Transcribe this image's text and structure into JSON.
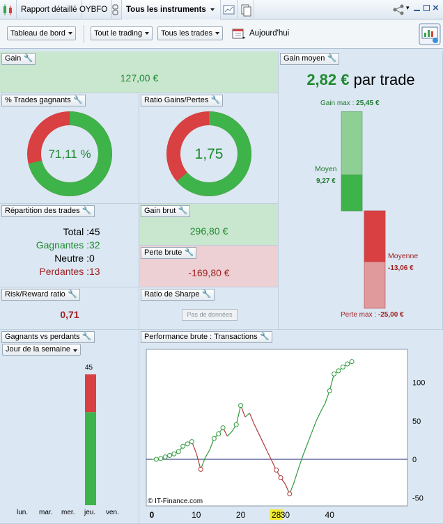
{
  "titlebar": {
    "tabs": [
      "Rapport détaillé",
      "OYBFO",
      "Tous les instruments"
    ]
  },
  "toolbar": {
    "dashboard": "Tableau de bord",
    "trading": "Tout le trading",
    "trades": "Tous les trades",
    "today": "Aujourd'hui"
  },
  "gain": {
    "title": "Gain",
    "value": "127,00 €"
  },
  "gain_moyen": {
    "title": "Gain moyen",
    "value": "2,82 €",
    "suffix": "par trade",
    "gain_max_label": "Gain max : ",
    "gain_max_value": "25,45 €",
    "moyen_label": "Moyen",
    "moyen_value": "9,27 €",
    "moyenne_label": "Moyenne",
    "moyenne_value": "-13,06 €",
    "perte_max_label": "Perte max : ",
    "perte_max_value": "-25,00 €",
    "gain_max": 25.45,
    "gain_avg": 9.27,
    "loss_avg": -13.06,
    "loss_max": -25.0
  },
  "trades_gagnants": {
    "title": "% Trades gagnants",
    "value": "71,11 %",
    "fraction": 0.7111
  },
  "ratio_gp": {
    "title": "Ratio Gains/Pertes",
    "value": "1,75",
    "fraction": 0.636
  },
  "repartition": {
    "title": "Répartition des trades",
    "rows": [
      {
        "label": "Total : ",
        "value": "45"
      },
      {
        "label": "Gagnantes : ",
        "value": "32"
      },
      {
        "label": "Neutre : ",
        "value": "0"
      },
      {
        "label": "Perdantes : ",
        "value": "13"
      }
    ]
  },
  "gain_brut": {
    "title": "Gain brut",
    "value": "296,80 €"
  },
  "perte_brute": {
    "title": "Perte brute",
    "value": "-169,80 €"
  },
  "risk_reward": {
    "title": "Risk/Reward ratio",
    "value": "0,71"
  },
  "sharpe": {
    "title": "Ratio de Sharpe",
    "button": "Pas de données"
  },
  "gvp": {
    "title": "Gagnants vs perdants",
    "period": "Jour de la semaine",
    "days": [
      "lun.",
      "mar.",
      "mer.",
      "jeu.",
      "ven."
    ],
    "bar_total_label": "45",
    "winners": 32,
    "losers": 13,
    "total": 45
  },
  "perf": {
    "title": "Performance brute : Transactions",
    "watermark": "© IT-Finance.com",
    "highlight_tick": "28"
  },
  "chart_data": {
    "type": "line",
    "x": [
      1,
      2,
      3,
      4,
      5,
      6,
      7,
      8,
      9,
      10,
      11,
      12,
      13,
      14,
      15,
      16,
      17,
      18,
      19,
      20,
      21,
      22,
      23,
      24,
      25,
      26,
      27,
      28,
      29,
      30,
      31,
      32,
      33,
      34,
      35,
      36,
      37,
      38,
      39,
      40,
      41,
      42,
      43,
      44,
      45
    ],
    "y": [
      0,
      1,
      3,
      5,
      7,
      10,
      17,
      20,
      23,
      8,
      -13,
      2,
      12,
      27,
      33,
      41,
      30,
      36,
      45,
      70,
      55,
      60,
      46,
      34,
      22,
      10,
      -2,
      -14,
      -24,
      -32,
      -45,
      -30,
      -12,
      5,
      20,
      35,
      50,
      62,
      73,
      89,
      111,
      115,
      120,
      124,
      127
    ],
    "markers": [
      1,
      2,
      3,
      4,
      5,
      6,
      7,
      8,
      9,
      11,
      14,
      15,
      16,
      19,
      20,
      28,
      29,
      31,
      40,
      41,
      42,
      43,
      44,
      45
    ],
    "xticks": [
      "0",
      "10",
      "20",
      "28",
      "30",
      "40"
    ],
    "yticks": [
      "100",
      "50",
      "0",
      "-50"
    ],
    "xlim": [
      0,
      48
    ],
    "ylim": [
      -60,
      140
    ]
  }
}
